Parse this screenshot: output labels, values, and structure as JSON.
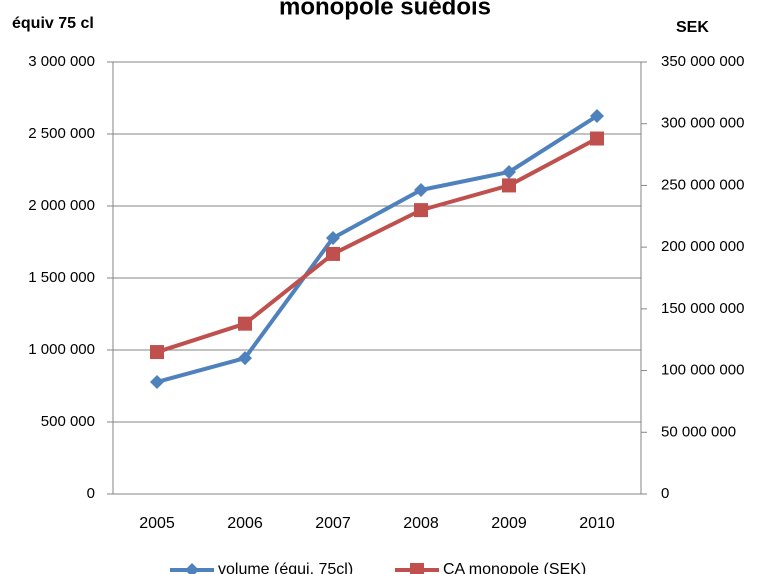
{
  "chart_data": {
    "type": "line",
    "title": "monopole suédois",
    "y_label": "équiv 75 cl",
    "y2_label": "SEK",
    "categories": [
      "2005",
      "2006",
      "2007",
      "2008",
      "2009",
      "2010"
    ],
    "series": [
      {
        "name": "volume (équi. 75cl)",
        "color": "#4f81bd",
        "marker": "diamond",
        "values": [
          778000,
          944000,
          1778000,
          2111000,
          2236000,
          2625000
        ]
      },
      {
        "name": "CA monopole (SEK)",
        "color": "#c0504d",
        "marker": "square",
        "axis": "y2",
        "values": [
          115000000,
          138000000,
          194500000,
          230000000,
          250000000,
          288000000
        ]
      }
    ],
    "ylim": [
      0,
      3000000
    ],
    "yticks": [
      0,
      {
        "value": 500000,
        "label": "500 000"
      },
      {
        "value": 1000000,
        "label": "1 000 000"
      },
      {
        "value": 1500000,
        "label": "1 500 000"
      },
      {
        "value": 2000000,
        "label": "2 000 000"
      },
      {
        "value": 2500000,
        "label": "2 500 000"
      },
      {
        "value": 3000000,
        "label": "3 000 000"
      }
    ],
    "y2lim": [
      0,
      350000000
    ],
    "y2ticks": [
      0,
      {
        "value": 50000000,
        "label": "50 000 000"
      },
      {
        "value": 100000000,
        "label": "100 000 000"
      },
      {
        "value": 150000000,
        "label": "150 000 000"
      },
      {
        "value": 200000000,
        "label": "200 000 000"
      },
      {
        "value": 250000000,
        "label": "250 000 000"
      },
      {
        "value": 300000000,
        "label": "300 000 000"
      },
      {
        "value": 350000000,
        "label": "350 000 000"
      }
    ],
    "grid": true,
    "legend": "bottom"
  }
}
